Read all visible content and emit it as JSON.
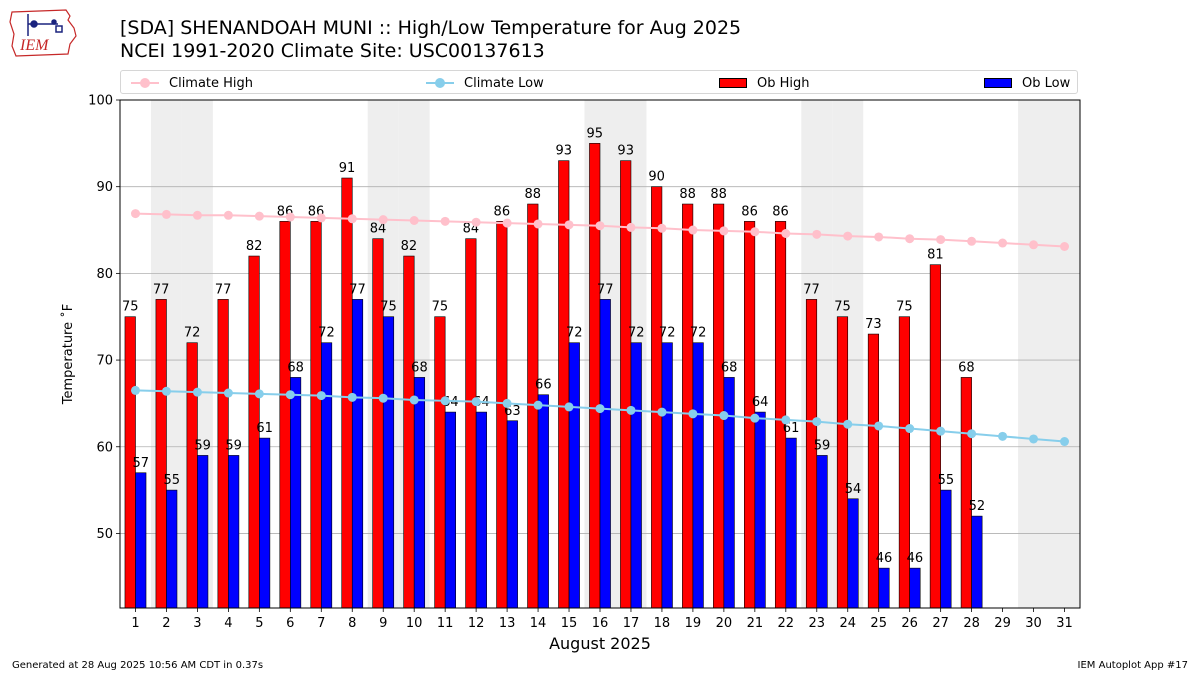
{
  "logo": {
    "text": "IEM",
    "icon": "iowa-weather-station-logo"
  },
  "title": {
    "line1": "[SDA] SHENANDOAH MUNI :: High/Low Temperature for Aug 2025",
    "line2": "NCEI 1991-2020 Climate Site: USC00137613"
  },
  "legend": {
    "climate_high": "Climate High",
    "climate_low": "Climate Low",
    "ob_high": "Ob High",
    "ob_low": "Ob Low"
  },
  "colors": {
    "climate_high": "#ffc0cb",
    "climate_low": "#87ceeb",
    "ob_high": "#ff0000",
    "ob_low": "#0000ff",
    "weekend_band": "#eeeeee",
    "grid": "#b0b0b0"
  },
  "footer": {
    "left": "Generated at 28 Aug 2025 10:56 AM CDT in 0.37s",
    "right": "IEM Autoplot App #17"
  },
  "chart_data": {
    "type": "bar",
    "xlabel": "August 2025",
    "ylabel": "Temperature ˚F",
    "ylim": [
      41.4,
      100
    ],
    "yticks": [
      50,
      60,
      70,
      80,
      90,
      100
    ],
    "grid": "horizontal",
    "legend_position": "top",
    "days": [
      1,
      2,
      3,
      4,
      5,
      6,
      7,
      8,
      9,
      10,
      11,
      12,
      13,
      14,
      15,
      16,
      17,
      18,
      19,
      20,
      21,
      22,
      23,
      24,
      25,
      26,
      27,
      28,
      29,
      30,
      31
    ],
    "shaded_days": [
      2,
      3,
      9,
      10,
      16,
      17,
      23,
      24,
      30,
      31
    ],
    "series": [
      {
        "name": "Ob High",
        "kind": "bar",
        "values": [
          75,
          77,
          72,
          77,
          82,
          86,
          86,
          91,
          84,
          82,
          75,
          84,
          86,
          88,
          93,
          95,
          93,
          90,
          88,
          88,
          86,
          86,
          77,
          75,
          73,
          75,
          81,
          68,
          null,
          null,
          null
        ]
      },
      {
        "name": "Ob Low",
        "kind": "bar",
        "values": [
          57,
          55,
          59,
          59,
          61,
          68,
          72,
          77,
          75,
          68,
          64,
          64,
          63,
          66,
          72,
          77,
          72,
          72,
          72,
          68,
          64,
          61,
          59,
          54,
          46,
          46,
          55,
          52,
          null,
          null,
          null
        ]
      },
      {
        "name": "Climate High",
        "kind": "line",
        "values": [
          86.9,
          86.8,
          86.7,
          86.7,
          86.6,
          86.5,
          86.4,
          86.3,
          86.2,
          86.1,
          86.0,
          85.9,
          85.8,
          85.7,
          85.6,
          85.5,
          85.3,
          85.2,
          85.0,
          84.9,
          84.8,
          84.6,
          84.5,
          84.3,
          84.2,
          84.0,
          83.9,
          83.7,
          83.5,
          83.3,
          83.1
        ]
      },
      {
        "name": "Climate Low",
        "kind": "line",
        "values": [
          66.5,
          66.4,
          66.3,
          66.2,
          66.1,
          66.0,
          65.9,
          65.7,
          65.6,
          65.4,
          65.3,
          65.2,
          65.0,
          64.8,
          64.6,
          64.4,
          64.2,
          64.0,
          63.8,
          63.6,
          63.3,
          63.1,
          62.9,
          62.6,
          62.4,
          62.1,
          61.8,
          61.5,
          61.2,
          60.9,
          60.6
        ]
      }
    ]
  }
}
